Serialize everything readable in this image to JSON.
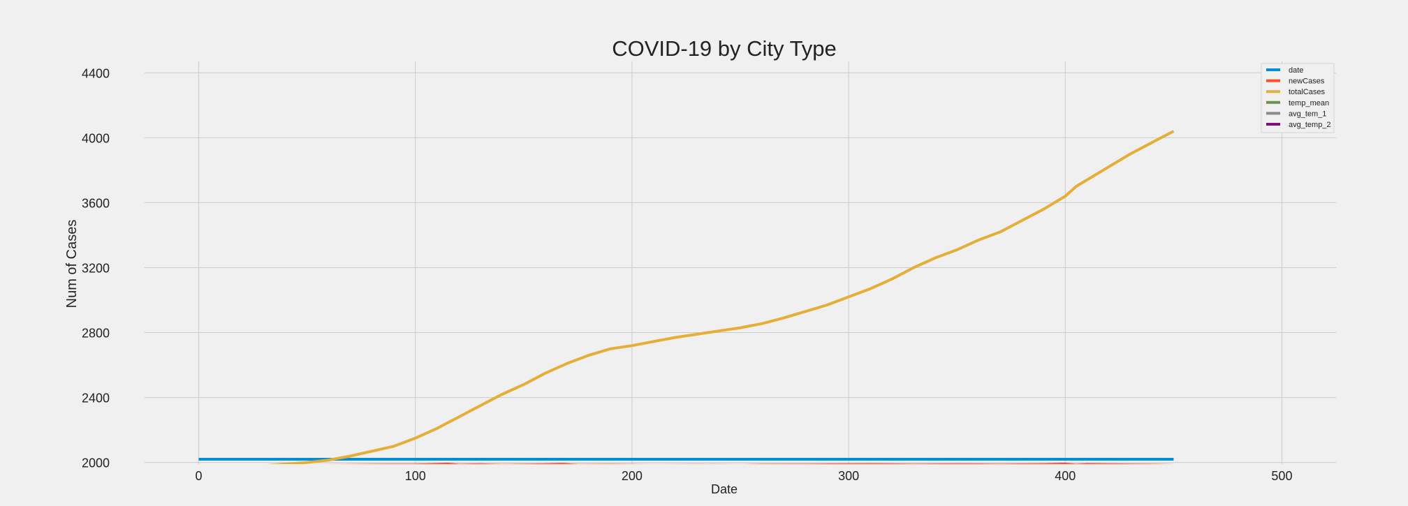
{
  "chart_data": {
    "type": "line",
    "title": "COVID-19 by City Type",
    "xlabel": "Date",
    "ylabel": "Num of Cases",
    "xlim": [
      -25,
      525
    ],
    "ylim": [
      1990,
      4470
    ],
    "xticks": [
      0,
      100,
      200,
      300,
      400,
      500
    ],
    "yticks": [
      2000,
      2400,
      2800,
      3200,
      3600,
      4000,
      4400
    ],
    "grid": true,
    "legend_position": "top-right",
    "series": [
      {
        "name": "date",
        "color": "#008fd5",
        "x": [
          0,
          450
        ],
        "y": [
          2020,
          2020
        ]
      },
      {
        "name": "newCases",
        "color": "#fc4f30",
        "x": [
          0,
          20,
          40,
          60,
          80,
          90,
          100,
          110,
          115,
          120,
          130,
          140,
          150,
          160,
          168,
          175,
          190,
          210,
          230,
          250,
          260,
          280,
          300,
          310,
          330,
          350,
          370,
          390,
          400,
          405,
          410,
          420,
          440,
          450
        ],
        "y": [
          1980,
          1980,
          1981,
          1982,
          1984,
          1985,
          1985,
          1988,
          1990,
          1984,
          1986,
          1983,
          1985,
          1986,
          1989,
          1983,
          1984,
          1982,
          1983,
          1982,
          1984,
          1985,
          1986,
          1987,
          1985,
          1986,
          1985,
          1987,
          1990,
          1984,
          1988,
          1986,
          1984,
          1982
        ]
      },
      {
        "name": "totalCases",
        "color": "#e5ae38",
        "x": [
          0,
          30,
          50,
          60,
          70,
          80,
          90,
          100,
          110,
          120,
          130,
          140,
          150,
          160,
          170,
          180,
          190,
          200,
          210,
          220,
          230,
          240,
          250,
          260,
          270,
          280,
          290,
          300,
          310,
          320,
          330,
          340,
          350,
          360,
          370,
          380,
          390,
          400,
          405,
          410,
          420,
          430,
          440,
          450
        ],
        "y": [
          1975,
          1980,
          2000,
          2015,
          2040,
          2070,
          2100,
          2150,
          2210,
          2280,
          2350,
          2420,
          2480,
          2550,
          2610,
          2660,
          2700,
          2720,
          2745,
          2770,
          2790,
          2810,
          2830,
          2855,
          2890,
          2930,
          2970,
          3020,
          3070,
          3130,
          3200,
          3260,
          3310,
          3370,
          3420,
          3490,
          3560,
          3640,
          3700,
          3740,
          3820,
          3900,
          3970,
          4040
        ]
      },
      {
        "name": "temp_mean",
        "color": "#6d904f",
        "x": [
          0,
          500
        ],
        "y": [
          1978,
          1978
        ]
      },
      {
        "name": "avg_tem_1",
        "color": "#8b8b8b",
        "x": [
          0,
          450
        ],
        "y": [
          1979,
          1979
        ]
      },
      {
        "name": "avg_temp_2",
        "color": "#810f7c",
        "x": [
          0,
          450
        ],
        "y": [
          1977,
          1977
        ]
      }
    ]
  }
}
